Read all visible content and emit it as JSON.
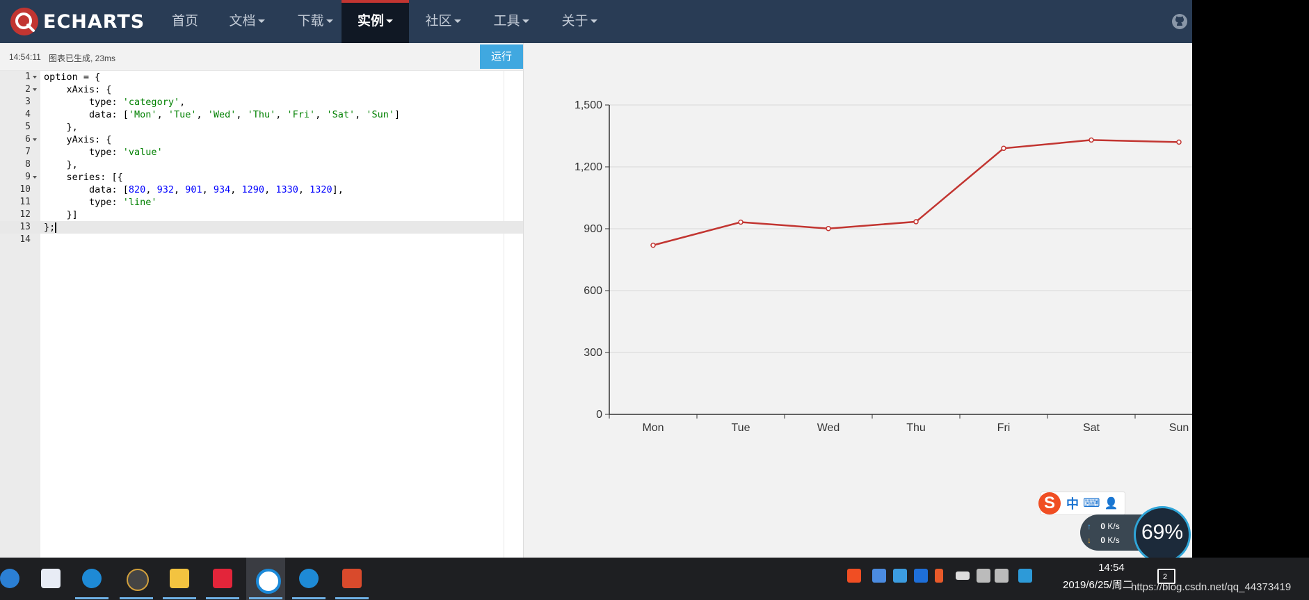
{
  "brand": {
    "logo_text": "ECHARTS"
  },
  "nav": {
    "items": [
      {
        "label": "首页",
        "dropdown": false
      },
      {
        "label": "文档",
        "dropdown": true
      },
      {
        "label": "下载",
        "dropdown": true
      },
      {
        "label": "实例",
        "dropdown": true,
        "active": true
      },
      {
        "label": "社区",
        "dropdown": true
      },
      {
        "label": "工具",
        "dropdown": true
      },
      {
        "label": "关于",
        "dropdown": true
      }
    ]
  },
  "editor": {
    "status_time": "14:54:11",
    "status_msg": "图表已生成, 23ms",
    "run_label": "运行",
    "active_line": 13
  },
  "chart_data": {
    "type": "line",
    "categories": [
      "Mon",
      "Tue",
      "Wed",
      "Thu",
      "Fri",
      "Sat",
      "Sun"
    ],
    "series": [
      {
        "values": [
          820,
          932,
          901,
          934,
          1290,
          1330,
          1320
        ],
        "color": "#c23531"
      }
    ],
    "ylim": [
      0,
      1500
    ],
    "yticks": [
      "0",
      "300",
      "600",
      "900",
      "1,200",
      "1,500"
    ],
    "grid": true
  },
  "ime": {
    "logo": "S",
    "mode": "中",
    "keyboard": "⌨",
    "user": "👤"
  },
  "net": {
    "up": "0",
    "down": "0",
    "unit": "K/s",
    "cpu": "69%"
  },
  "taskbar": {
    "time": "14:54",
    "date": "2019/6/25/周二",
    "notification_count": "2",
    "watermark": "https://blog.csdn.net/qq_44373419"
  },
  "colors": {
    "nav_bg": "#293c55",
    "accent": "#c23531",
    "run_button": "#40a8e0"
  }
}
